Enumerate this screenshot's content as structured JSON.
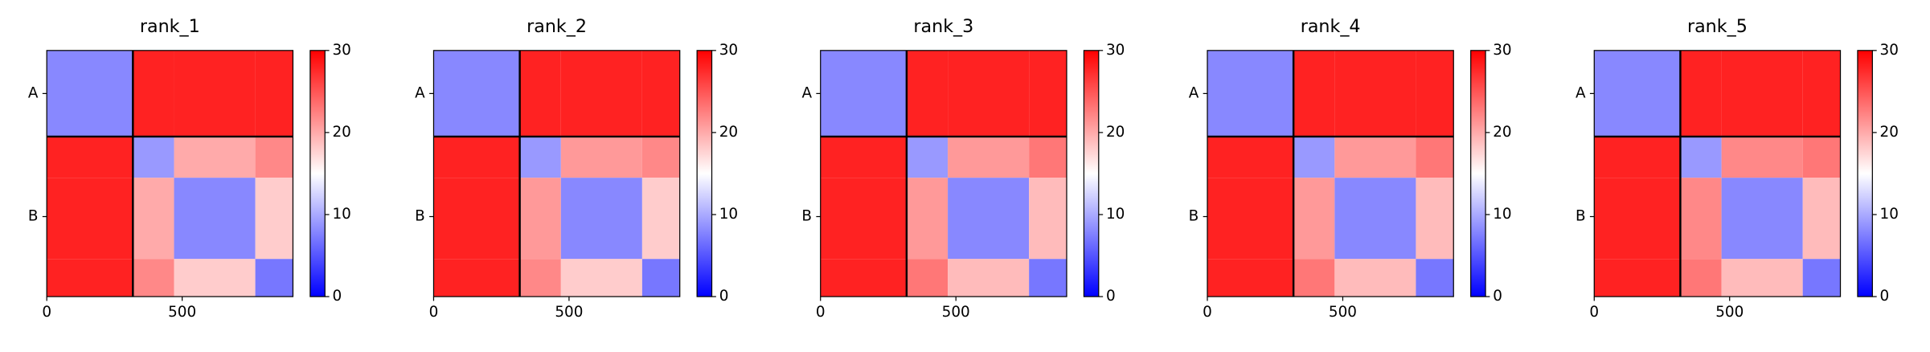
{
  "chart_data": [
    {
      "type": "heatmap",
      "title": "rank_1",
      "colormap": "bwr",
      "edges": [
        0,
        318,
        470,
        770,
        909
      ],
      "matrix": [
        [
          8,
          28,
          28,
          28
        ],
        [
          28,
          9,
          20,
          22
        ],
        [
          28,
          20,
          8,
          18
        ],
        [
          28,
          22,
          18,
          7
        ]
      ],
      "chain_labels": [
        "A",
        "B"
      ],
      "chain_edges": [
        0,
        318,
        909
      ],
      "xlim": [
        0,
        909
      ],
      "xticks": [
        0,
        500
      ],
      "clim": [
        0,
        30
      ],
      "cticks": [
        0,
        10,
        20,
        30
      ]
    },
    {
      "type": "heatmap",
      "title": "rank_2",
      "colormap": "bwr",
      "edges": [
        0,
        318,
        470,
        770,
        909
      ],
      "matrix": [
        [
          8,
          28,
          28,
          28
        ],
        [
          28,
          9,
          21,
          22
        ],
        [
          28,
          21,
          8,
          18
        ],
        [
          28,
          22,
          18,
          7
        ]
      ],
      "chain_labels": [
        "A",
        "B"
      ],
      "chain_edges": [
        0,
        318,
        909
      ],
      "xlim": [
        0,
        909
      ],
      "xticks": [
        0,
        500
      ],
      "clim": [
        0,
        30
      ],
      "cticks": [
        0,
        10,
        20,
        30
      ]
    },
    {
      "type": "heatmap",
      "title": "rank_3",
      "colormap": "bwr",
      "edges": [
        0,
        318,
        470,
        770,
        909
      ],
      "matrix": [
        [
          8,
          28,
          28,
          28
        ],
        [
          28,
          9,
          21,
          23
        ],
        [
          28,
          21,
          8,
          19
        ],
        [
          28,
          23,
          19,
          7
        ]
      ],
      "chain_labels": [
        "A",
        "B"
      ],
      "chain_edges": [
        0,
        318,
        909
      ],
      "xlim": [
        0,
        909
      ],
      "xticks": [
        0,
        500
      ],
      "clim": [
        0,
        30
      ],
      "cticks": [
        0,
        10,
        20,
        30
      ]
    },
    {
      "type": "heatmap",
      "title": "rank_4",
      "colormap": "bwr",
      "edges": [
        0,
        318,
        470,
        770,
        909
      ],
      "matrix": [
        [
          8,
          28,
          28,
          28
        ],
        [
          28,
          9,
          21,
          23
        ],
        [
          28,
          21,
          8,
          19
        ],
        [
          28,
          23,
          19,
          7
        ]
      ],
      "chain_labels": [
        "A",
        "B"
      ],
      "chain_edges": [
        0,
        318,
        909
      ],
      "xlim": [
        0,
        909
      ],
      "xticks": [
        0,
        500
      ],
      "clim": [
        0,
        30
      ],
      "cticks": [
        0,
        10,
        20,
        30
      ]
    },
    {
      "type": "heatmap",
      "title": "rank_5",
      "colormap": "bwr",
      "edges": [
        0,
        318,
        470,
        770,
        909
      ],
      "matrix": [
        [
          8,
          28,
          28,
          28
        ],
        [
          28,
          9,
          22,
          23
        ],
        [
          28,
          22,
          8,
          19
        ],
        [
          28,
          23,
          19,
          7
        ]
      ],
      "chain_labels": [
        "A",
        "B"
      ],
      "chain_edges": [
        0,
        318,
        909
      ],
      "xlim": [
        0,
        909
      ],
      "xticks": [
        0,
        500
      ],
      "clim": [
        0,
        30
      ],
      "cticks": [
        0,
        10,
        20,
        30
      ]
    }
  ]
}
